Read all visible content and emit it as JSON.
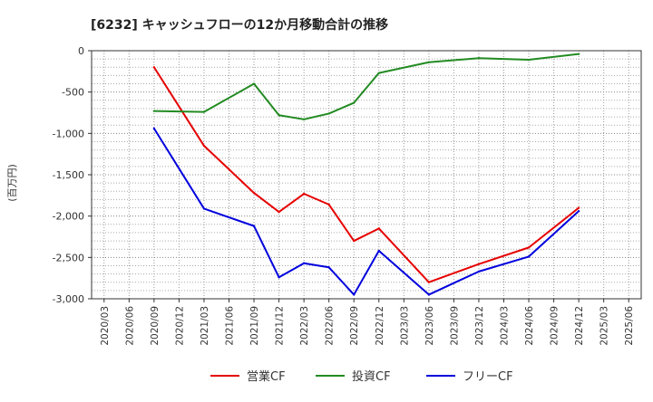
{
  "chart_data": {
    "type": "line",
    "title": "[6232]  キャッシュフローの12か月移動合計の推移",
    "ylabel": "(百万円)",
    "xlabel": "",
    "ylim": [
      -3000,
      0
    ],
    "yticks": [
      0,
      -500,
      -1000,
      -1500,
      -2000,
      -2500,
      -3000
    ],
    "ytick_labels": [
      "0",
      "-500",
      "-1,000",
      "-1,500",
      "-2,000",
      "-2,500",
      "-3,000"
    ],
    "x_categories": [
      "2020/03",
      "2020/06",
      "2020/09",
      "2020/12",
      "2021/03",
      "2021/06",
      "2021/09",
      "2021/12",
      "2022/03",
      "2022/06",
      "2022/09",
      "2022/12",
      "2023/03",
      "2023/06",
      "2023/09",
      "2023/12",
      "2024/03",
      "2024/06",
      "2024/09",
      "2024/12",
      "2025/03",
      "2025/06"
    ],
    "grid": true,
    "legend_position": "bottom",
    "series": [
      {
        "name": "営業CF",
        "color": "#e60000",
        "x": [
          "2020/09",
          "2021/03",
          "2021/09",
          "2021/12",
          "2022/03",
          "2022/06",
          "2022/09",
          "2022/12",
          "2023/06",
          "2023/12",
          "2024/06",
          "2024/12"
        ],
        "values": [
          -200,
          -1150,
          -1720,
          -1950,
          -1730,
          -1860,
          -2300,
          -2150,
          -2800,
          -2580,
          -2380,
          -1900
        ]
      },
      {
        "name": "投資CF",
        "color": "#228b22",
        "x": [
          "2020/09",
          "2021/03",
          "2021/09",
          "2021/12",
          "2022/03",
          "2022/06",
          "2022/09",
          "2022/12",
          "2023/06",
          "2023/12",
          "2024/06",
          "2024/12"
        ],
        "values": [
          -730,
          -740,
          -400,
          -780,
          -830,
          -760,
          -630,
          -270,
          -140,
          -90,
          -110,
          -40
        ]
      },
      {
        "name": "フリーCF",
        "color": "#0000dd",
        "x": [
          "2020/09",
          "2021/03",
          "2021/09",
          "2021/12",
          "2022/03",
          "2022/06",
          "2022/09",
          "2022/12",
          "2023/06",
          "2023/12",
          "2024/06",
          "2024/12"
        ],
        "values": [
          -940,
          -1910,
          -2120,
          -2740,
          -2570,
          -2620,
          -2950,
          -2420,
          -2950,
          -2670,
          -2490,
          -1940
        ]
      }
    ]
  }
}
